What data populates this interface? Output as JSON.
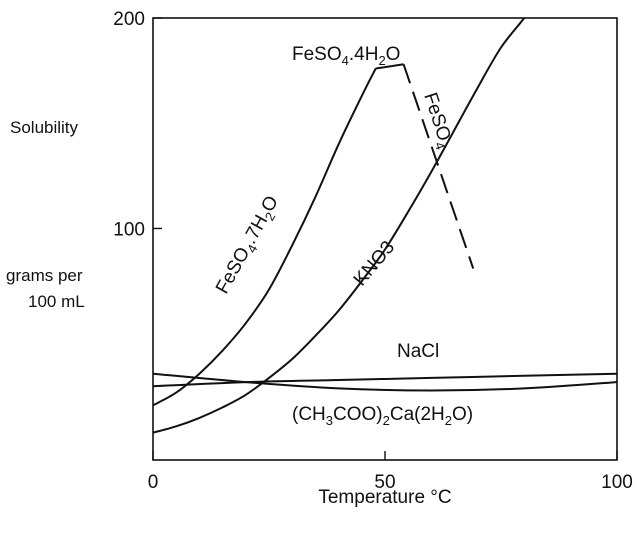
{
  "chart_data": {
    "type": "line",
    "xlabel": "Temperature °C",
    "ylabel_lines": [
      "Solubility",
      "grams per",
      "100 mL"
    ],
    "xlim": [
      0,
      100
    ],
    "ylim": [
      -10,
      200
    ],
    "x_ticks": [
      0,
      50,
      100
    ],
    "y_ticks": [
      100,
      200
    ],
    "grid": false,
    "legend": "none",
    "series": [
      {
        "key": "fe7",
        "label_base": "FeSO",
        "label_sub": "4",
        "label_rest": ".7H",
        "label_sub2": "2",
        "label_tail": "O",
        "style": "solid",
        "x": [
          0,
          5,
          10,
          15,
          20,
          25,
          30,
          35,
          40,
          45,
          48
        ],
        "y": [
          16,
          22,
          31,
          42,
          55,
          71,
          92,
          115,
          140,
          163,
          176
        ]
      },
      {
        "key": "fe4",
        "label_base": "FeSO",
        "label_sub": "4",
        "label_rest": ".4H",
        "label_sub2": "2",
        "label_tail": "O",
        "style": "solid",
        "x": [
          48,
          54
        ],
        "y": [
          176,
          178
        ]
      },
      {
        "key": "fe_anh",
        "label_base": "FeSO",
        "label_sub": "4",
        "style": "dashed",
        "x": [
          54,
          69
        ],
        "y": [
          178,
          81
        ]
      },
      {
        "key": "kno3",
        "label": "KNO3",
        "style": "solid",
        "x": [
          0,
          5,
          10,
          15,
          20,
          25,
          30,
          35,
          40,
          45,
          50,
          55,
          60,
          65,
          70,
          75,
          80,
          83
        ],
        "y": [
          3,
          6,
          10,
          15,
          21,
          29,
          38,
          49,
          61,
          75,
          90,
          108,
          127,
          147,
          167,
          186,
          200,
          210
        ]
      },
      {
        "key": "nacl",
        "label": "NaCl",
        "style": "solid",
        "x": [
          0,
          20,
          40,
          60,
          80,
          100
        ],
        "y": [
          25,
          27,
          28,
          29,
          30,
          31
        ]
      },
      {
        "key": "caac",
        "label_pre": "(CH",
        "label_sub": "3",
        "label_mid": "COO)",
        "label_sub2": "2",
        "label_post": "Ca(2H",
        "label_sub3": "2",
        "label_end": "O)",
        "style": "solid",
        "x": [
          0,
          20,
          40,
          60,
          80,
          100
        ],
        "y": [
          31,
          27,
          24,
          23,
          24,
          27
        ]
      }
    ]
  }
}
